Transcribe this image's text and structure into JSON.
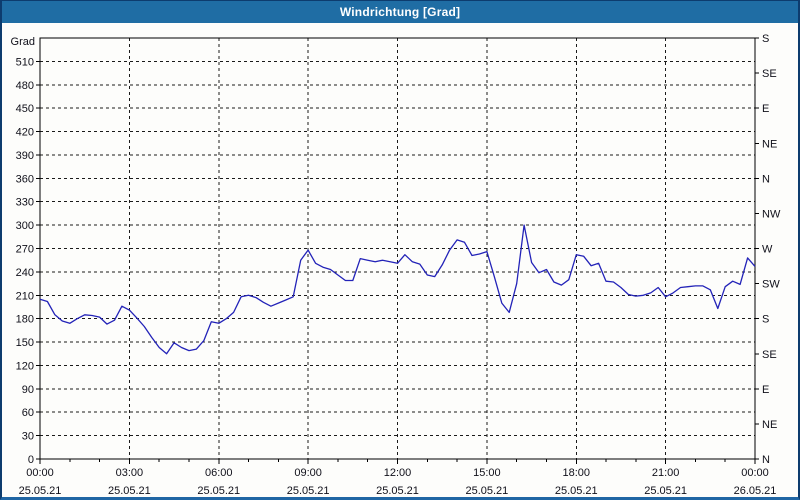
{
  "window": {
    "title": "Windrichtung [Grad]"
  },
  "colors": {
    "titlebar_bg": "#1f6da4",
    "titlebar_text": "#ffffff",
    "window_border": "#0d3c6e",
    "plot_bg": "#fdfdfb",
    "grid": "#1a1a1a",
    "axis": "#000000",
    "label": "#10101a",
    "line": "#2323b8"
  },
  "chart_data": {
    "type": "line",
    "title": "Windrichtung [Grad]",
    "grid": "dashed",
    "y_left": {
      "unit_label": "Grad",
      "min": 0,
      "max": 540,
      "tick_step": 30,
      "ticks": [
        0,
        30,
        60,
        90,
        120,
        150,
        180,
        210,
        240,
        270,
        300,
        330,
        360,
        390,
        420,
        450,
        480,
        510
      ]
    },
    "y_right": {
      "tick_step": 45,
      "ticks": [
        {
          "value": 540,
          "label": "S"
        },
        {
          "value": 495,
          "label": "SE"
        },
        {
          "value": 450,
          "label": "E"
        },
        {
          "value": 405,
          "label": "NE"
        },
        {
          "value": 360,
          "label": "N"
        },
        {
          "value": 315,
          "label": "NW"
        },
        {
          "value": 270,
          "label": "W"
        },
        {
          "value": 225,
          "label": "SW"
        },
        {
          "value": 180,
          "label": "S"
        },
        {
          "value": 135,
          "label": "SE"
        },
        {
          "value": 90,
          "label": "E"
        },
        {
          "value": 45,
          "label": "NE"
        },
        {
          "value": 0,
          "label": "N"
        }
      ]
    },
    "x": {
      "total_hours": 24,
      "minor_tick_hours": 1,
      "major_tick_hours": 3,
      "labels": [
        {
          "hour": 0,
          "time": "00:00",
          "date": "25.05.21"
        },
        {
          "hour": 3,
          "time": "03:00",
          "date": "25.05.21"
        },
        {
          "hour": 6,
          "time": "06:00",
          "date": "25.05.21"
        },
        {
          "hour": 9,
          "time": "09:00",
          "date": "25.05.21"
        },
        {
          "hour": 12,
          "time": "12:00",
          "date": "25.05.21"
        },
        {
          "hour": 15,
          "time": "15:00",
          "date": "25.05.21"
        },
        {
          "hour": 18,
          "time": "18:00",
          "date": "25.05.21"
        },
        {
          "hour": 21,
          "time": "21:00",
          "date": "25.05.21"
        },
        {
          "hour": 24,
          "time": "00:00",
          "date": "26.05.21"
        }
      ]
    },
    "series": [
      {
        "name": "Windrichtung",
        "color": "#2323b8",
        "sample_interval_minutes": 15,
        "start": "25.05.21 00:00",
        "values": [
          205,
          202,
          185,
          177,
          174,
          180,
          185,
          184,
          182,
          173,
          178,
          196,
          191,
          181,
          170,
          156,
          143,
          135,
          149,
          143,
          139,
          141,
          152,
          176,
          174,
          180,
          188,
          208,
          210,
          207,
          201,
          196,
          200,
          204,
          208,
          255,
          268,
          251,
          246,
          243,
          236,
          229,
          229,
          257,
          255,
          253,
          255,
          253,
          251,
          262,
          253,
          250,
          236,
          234,
          249,
          268,
          281,
          278,
          261,
          263,
          266,
          234,
          200,
          188,
          225,
          300,
          252,
          239,
          243,
          227,
          223,
          230,
          262,
          260,
          248,
          251,
          228,
          227,
          220,
          211,
          209,
          210,
          213,
          220,
          208,
          213,
          220,
          221,
          222,
          222,
          217,
          193,
          221,
          228,
          224,
          258,
          247
        ]
      }
    ]
  }
}
